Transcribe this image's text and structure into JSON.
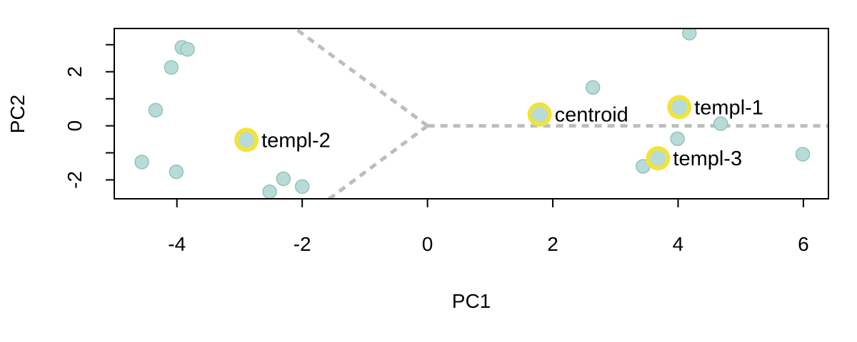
{
  "chart_data": {
    "type": "scatter",
    "title": "",
    "xlabel": "PC1",
    "ylabel": "PC2",
    "xlim": [
      -5.0,
      6.4
    ],
    "ylim": [
      -2.7,
      3.6
    ],
    "xticks": [
      -4,
      -2,
      0,
      2,
      4,
      6
    ],
    "yticks": [
      -2,
      0,
      2
    ],
    "x_tick_labels": [
      "-4",
      "-2",
      "0",
      "2",
      "4",
      "6"
    ],
    "y_tick_labels": [
      "-2",
      "0",
      "2"
    ],
    "grid": false,
    "legend": "none",
    "colors": {
      "point_fill": "#b9dbd7",
      "point_stroke": "#8fc3bd",
      "highlight": "#f2e33a",
      "divider": "#bdbdbd"
    },
    "points": [
      {
        "x": -3.92,
        "y": 2.9
      },
      {
        "x": -3.83,
        "y": 2.83
      },
      {
        "x": -4.09,
        "y": 2.16
      },
      {
        "x": -4.34,
        "y": 0.58
      },
      {
        "x": -4.56,
        "y": -1.34
      },
      {
        "x": -4.01,
        "y": -1.7
      },
      {
        "x": -2.3,
        "y": -1.96
      },
      {
        "x": -2.0,
        "y": -2.25
      },
      {
        "x": -2.52,
        "y": -2.44
      },
      {
        "x": 2.64,
        "y": 1.42
      },
      {
        "x": 4.18,
        "y": 3.43
      },
      {
        "x": 4.68,
        "y": 0.08
      },
      {
        "x": 3.99,
        "y": -0.48
      },
      {
        "x": 3.44,
        "y": -1.5
      },
      {
        "x": 5.99,
        "y": -1.05
      }
    ],
    "highlighted_points": [
      {
        "label": "centroid",
        "x": 1.79,
        "y": 0.42
      },
      {
        "label": "templ-1",
        "x": 4.02,
        "y": 0.69
      },
      {
        "label": "templ-2",
        "x": -2.89,
        "y": -0.52
      },
      {
        "label": "templ-3",
        "x": 3.68,
        "y": -1.2
      }
    ],
    "divider_lines": [
      {
        "from": [
          0,
          0
        ],
        "to": [
          7.0,
          0
        ]
      },
      {
        "from": [
          0,
          0
        ],
        "to": [
          -2.21,
          3.77
        ]
      },
      {
        "from": [
          0,
          0
        ],
        "to": [
          -1.8,
          -3.1
        ]
      }
    ]
  }
}
